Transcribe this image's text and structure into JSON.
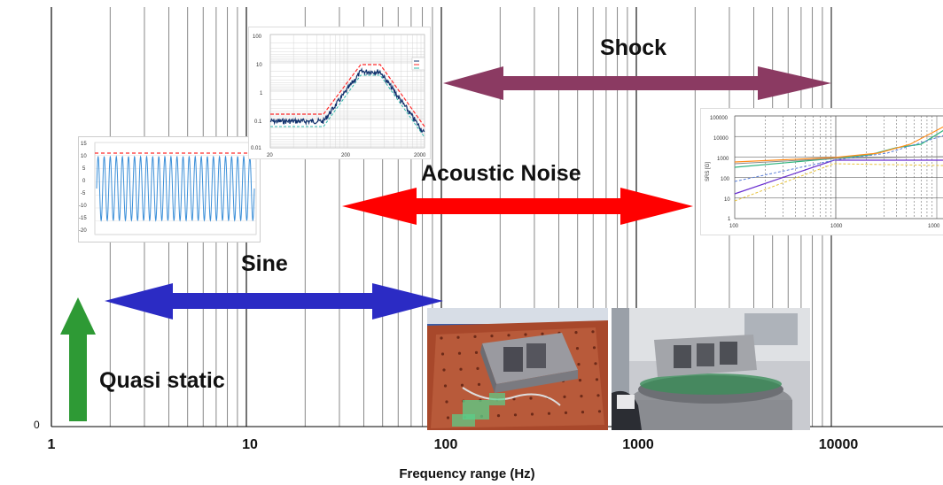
{
  "x_axis": {
    "title": "Frequency range (Hz)",
    "tick_labels": [
      "1",
      "10",
      "100",
      "1000",
      "10000"
    ],
    "zero_label": "0"
  },
  "bands": {
    "shock": "Shock",
    "acoustic": "Acoustic Noise",
    "sine": "Sine",
    "quasi_static": "Quasi static"
  },
  "colors": {
    "shock": "#8b3a62",
    "acoustic": "#ff0000",
    "sine": "#2b2bc4",
    "quasi_static": "#2e9a35"
  },
  "sine_inset": {
    "y_ticks": [
      "15",
      "10",
      "5",
      "0",
      "-5",
      "-10",
      "-15",
      "-20"
    ]
  },
  "random_inset": {
    "y_ticks": [
      "100",
      "10",
      "1",
      "0.1",
      "0.01"
    ],
    "x_ticks": [
      "20",
      "200",
      "2000"
    ]
  },
  "srs_inset": {
    "y_axis_label": "SRS [G]",
    "y_ticks": [
      "100000",
      "10000",
      "1000",
      "100",
      "10",
      "1"
    ],
    "x_ticks": [
      "100",
      "1000",
      "1000"
    ]
  }
}
